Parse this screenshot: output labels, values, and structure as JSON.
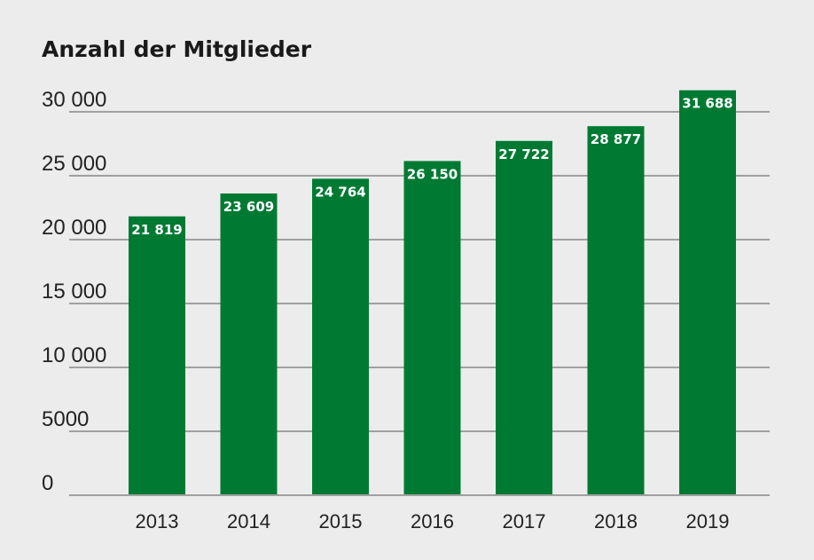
{
  "chart_data": {
    "type": "bar",
    "title": "Anzahl der Mitglieder",
    "categories": [
      "2013",
      "2014",
      "2015",
      "2016",
      "2017",
      "2018",
      "2019"
    ],
    "values": [
      21819,
      23609,
      24764,
      26150,
      27722,
      28877,
      31688
    ],
    "data_labels": [
      "21 819",
      "23 609",
      "24 764",
      "26 150",
      "27 722",
      "28 877",
      "31 688"
    ],
    "y_ticks": [
      0,
      5000,
      10000,
      15000,
      20000,
      25000,
      30000
    ],
    "y_tick_labels": [
      "0",
      "5000",
      "10 000",
      "15 000",
      "20 000",
      "25 000",
      "30 000"
    ],
    "ylim": [
      0,
      30000
    ],
    "grid": true,
    "xlabel": "",
    "ylabel": "",
    "colors": {
      "bar": "#007a33",
      "grid": "#a0a0a0",
      "background": "#ececec"
    }
  }
}
